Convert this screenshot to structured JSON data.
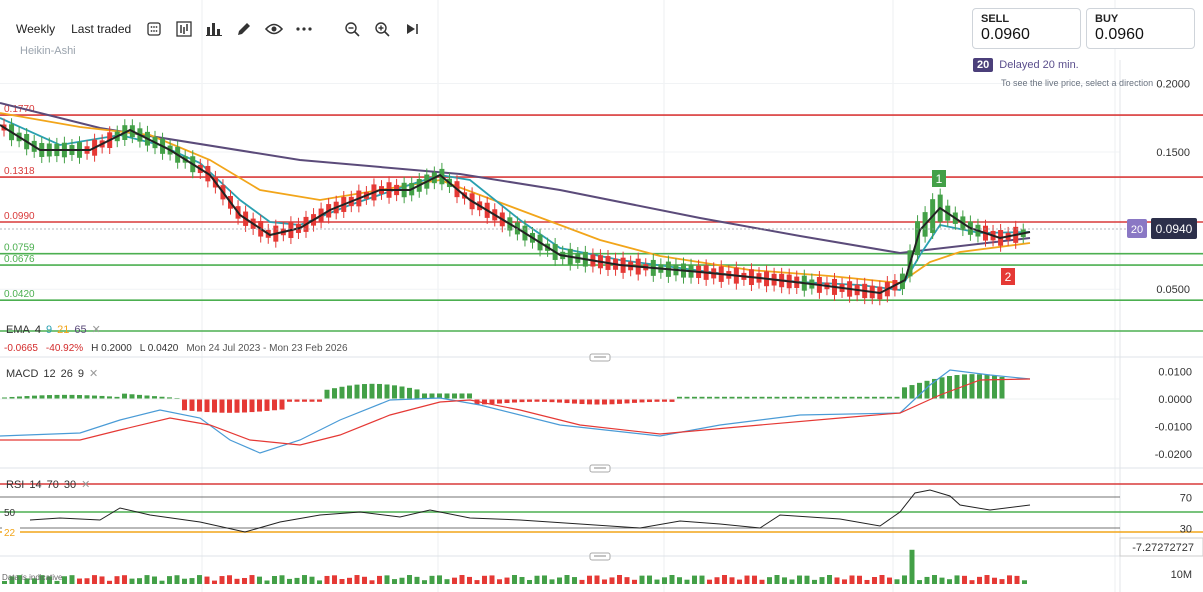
{
  "toolbar": {
    "timeframe": "Weekly",
    "price_type": "Last traded",
    "icons": [
      "candle-style-icon",
      "chart-type-icon",
      "indicators-icon",
      "draw-icon",
      "visibility-icon",
      "more-icon",
      "zoom-out-icon",
      "zoom-in-icon",
      "play-forward-icon"
    ]
  },
  "chart_style": "Heikin-Ashi",
  "trade": {
    "sell_label": "SELL",
    "sell_price": "0.0960",
    "buy_label": "BUY",
    "buy_price": "0.0960"
  },
  "delay": {
    "badge": "20",
    "text": "Delayed 20 min.",
    "note": "To see the live price, select a direction"
  },
  "price_axis": [
    "0.2000",
    "0.1500",
    "0.0500"
  ],
  "level_lines": [
    {
      "label": "0.1770",
      "value": 0.177,
      "color": "#d93a3a"
    },
    {
      "label": "0.1318",
      "value": 0.1318,
      "color": "#d93a3a"
    },
    {
      "label": "0.0990",
      "value": 0.099,
      "color": "#d93a3a"
    },
    {
      "label": "0.0759",
      "value": 0.0759,
      "color": "#4caf50"
    },
    {
      "label": "0.0676",
      "value": 0.0676,
      "color": "#4caf50"
    },
    {
      "label": "0.0420",
      "value": 0.042,
      "color": "#4caf50"
    }
  ],
  "current_price": {
    "badge": "20",
    "value": "0.0940"
  },
  "markers": [
    {
      "label": "1",
      "color": "#43a047"
    },
    {
      "label": "2",
      "color": "#e53935"
    }
  ],
  "ema": {
    "name": "EMA",
    "params": [
      "4",
      "9",
      "21",
      "65"
    ],
    "colors": [
      "#222222",
      "#2aa0b0",
      "#f2a51a",
      "#5b4b7a"
    ]
  },
  "range": {
    "change": "-0.0665",
    "change_pct": "-40.92%",
    "high": "H 0.2000",
    "low": "L 0.0420",
    "dates": "Mon 24 Jul 2023 - Mon 23 Feb 2026"
  },
  "macd": {
    "name": "MACD",
    "params": [
      "12",
      "26",
      "9"
    ],
    "axis": [
      "0.0100",
      "0.0000",
      "-0.0100",
      "-0.0200"
    ]
  },
  "rsi": {
    "name": "RSI",
    "params": [
      "14",
      "70",
      "30"
    ],
    "axis": [
      "70",
      "30"
    ],
    "left_labels": [
      "50",
      "22"
    ],
    "readout": "-7.27272727"
  },
  "volume": {
    "axis": "10M",
    "note": "Data is indicative"
  },
  "colors": {
    "up": "#43a047",
    "down": "#e53935",
    "level_red": "#d93a3a",
    "level_green": "#4caf50"
  }
}
